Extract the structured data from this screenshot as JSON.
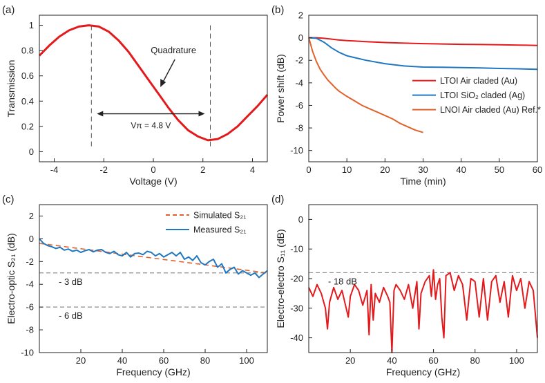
{
  "colors": {
    "red": "#e3191c",
    "blue": "#1f77c0",
    "orange": "#e0622a",
    "gray": "#8c8c8c",
    "axis": "#222222"
  },
  "chart_data": [
    {
      "panel_label": "(a)",
      "type": "line",
      "xlabel": "Voltage (V)",
      "ylabel": "Transmission",
      "xlim": [
        -4.6,
        4.6
      ],
      "ylim": [
        -0.08,
        1.08
      ],
      "xticks": [
        -4,
        -2,
        0,
        2,
        4
      ],
      "yticks": [
        0,
        0.2,
        0.4,
        0.6,
        0.8,
        1
      ],
      "series": [
        {
          "color": "#e3191c",
          "x": [
            -4.6,
            -4.2,
            -3.8,
            -3.4,
            -3.0,
            -2.6,
            -2.2,
            -1.8,
            -1.4,
            -1.0,
            -0.6,
            -0.2,
            0.2,
            0.6,
            1.0,
            1.4,
            1.8,
            2.2,
            2.6,
            3.0,
            3.4,
            3.8,
            4.2,
            4.6
          ],
          "y": [
            0.76,
            0.84,
            0.91,
            0.96,
            0.99,
            1.0,
            0.99,
            0.95,
            0.88,
            0.79,
            0.68,
            0.57,
            0.46,
            0.35,
            0.25,
            0.17,
            0.12,
            0.09,
            0.1,
            0.14,
            0.2,
            0.28,
            0.36,
            0.45
          ]
        }
      ],
      "annotations": {
        "quadrature": "Quadrature",
        "vpi": "Vπ = 4.8 V"
      },
      "markers": {
        "quadrature_x": 0.2,
        "dashed_x": [
          -2.5,
          2.3
        ],
        "vpi_span": [
          -2.5,
          2.3
        ],
        "vpi_y": 0.3
      }
    },
    {
      "panel_label": "(b)",
      "type": "line",
      "xlabel": "Time (min)",
      "ylabel": "Power shift (dB)",
      "xlim": [
        0,
        60
      ],
      "ylim": [
        -11,
        2
      ],
      "xticks": [
        0,
        10,
        20,
        30,
        40,
        50,
        60
      ],
      "yticks": [
        -10,
        -8,
        -6,
        -4,
        -2,
        0,
        2
      ],
      "legend_position": "right",
      "series": [
        {
          "name": "LTOI Air claded (Au)",
          "color": "#e3191c",
          "x": [
            0,
            2,
            4,
            6,
            8,
            10,
            15,
            20,
            25,
            30,
            35,
            40,
            45,
            50,
            55,
            60
          ],
          "y": [
            0,
            0,
            -0.05,
            -0.12,
            -0.2,
            -0.25,
            -0.35,
            -0.42,
            -0.48,
            -0.52,
            -0.55,
            -0.58,
            -0.6,
            -0.62,
            -0.65,
            -0.68
          ]
        },
        {
          "name": "LTOI SiO₂ claded (Ag)",
          "color": "#1f77c0",
          "x": [
            0,
            2,
            4,
            6,
            8,
            10,
            15,
            20,
            25,
            30,
            35,
            40,
            45,
            50,
            55,
            60
          ],
          "y": [
            0,
            -0.05,
            -0.4,
            -0.9,
            -1.3,
            -1.6,
            -2.0,
            -2.3,
            -2.5,
            -2.6,
            -2.62,
            -2.65,
            -2.68,
            -2.72,
            -2.75,
            -2.8
          ]
        },
        {
          "name": "LNOI Air claded (Au) Ref.*",
          "color": "#e0622a",
          "x": [
            0,
            0.5,
            1,
            2,
            3,
            4,
            5,
            6,
            7,
            8,
            10,
            12,
            14,
            16,
            18,
            20,
            22,
            24,
            26,
            28,
            30
          ],
          "y": [
            0,
            -0.6,
            -1.2,
            -2.1,
            -2.8,
            -3.3,
            -3.75,
            -4.1,
            -4.45,
            -4.75,
            -5.2,
            -5.6,
            -6.0,
            -6.3,
            -6.6,
            -6.9,
            -7.2,
            -7.6,
            -7.9,
            -8.2,
            -8.4
          ]
        }
      ]
    },
    {
      "panel_label": "(c)",
      "type": "line",
      "xlabel": "Frequency (GHz)",
      "ylabel": "Electro-optic S₂₁ (dB)",
      "xlim": [
        0,
        110
      ],
      "ylim": [
        -10,
        3
      ],
      "xticks": [
        20,
        40,
        60,
        80,
        100
      ],
      "yticks": [
        -10,
        -8,
        -6,
        -4,
        -2,
        0,
        2
      ],
      "legend_position": "top-right",
      "reference_lines": [
        {
          "y": -3,
          "label": "- 3 dB"
        },
        {
          "y": -6,
          "label": "- 6 dB"
        }
      ],
      "series": [
        {
          "name": "Simulated S₂₁",
          "color": "#e0622a",
          "style": "dashed",
          "x": [
            0,
            110
          ],
          "y": [
            -0.4,
            -3.0
          ]
        },
        {
          "name": "Measured S₂₁",
          "color": "#1f77c0",
          "x": [
            0,
            2,
            4,
            6,
            8,
            10,
            12,
            14,
            16,
            18,
            20,
            22,
            24,
            26,
            28,
            30,
            32,
            34,
            36,
            38,
            40,
            42,
            44,
            46,
            48,
            50,
            52,
            54,
            56,
            58,
            60,
            62,
            64,
            66,
            68,
            70,
            72,
            74,
            76,
            78,
            80,
            82,
            84,
            86,
            88,
            90,
            92,
            94,
            96,
            98,
            100,
            102,
            104,
            106,
            108,
            110
          ],
          "y": [
            0,
            -0.4,
            -0.6,
            -0.7,
            -0.85,
            -0.75,
            -1.0,
            -0.9,
            -1.1,
            -1.0,
            -1.2,
            -1.05,
            -0.95,
            -1.15,
            -1.0,
            -0.95,
            -1.2,
            -1.3,
            -1.1,
            -1.4,
            -1.5,
            -1.2,
            -1.6,
            -1.3,
            -1.25,
            -1.4,
            -1.1,
            -1.2,
            -1.5,
            -1.3,
            -1.6,
            -1.4,
            -1.2,
            -1.5,
            -1.2,
            -1.8,
            -1.6,
            -1.9,
            -1.5,
            -2.1,
            -2.3,
            -2.0,
            -1.8,
            -2.5,
            -2.2,
            -3.0,
            -2.7,
            -2.5,
            -3.1,
            -2.8,
            -3.0,
            -3.2,
            -3.0,
            -3.4,
            -3.1,
            -2.8
          ]
        }
      ]
    },
    {
      "panel_label": "(d)",
      "type": "line",
      "xlabel": "Frequency (GHz)",
      "ylabel": "Electro-electro S₁₁ (dB)",
      "xlim": [
        0,
        110
      ],
      "ylim": [
        -45,
        5
      ],
      "xticks": [
        20,
        40,
        60,
        80,
        100
      ],
      "yticks": [
        -40,
        -30,
        -20,
        -10,
        0
      ],
      "reference_lines": [
        {
          "y": -18,
          "label": "- 18 dB"
        }
      ],
      "series": [
        {
          "color": "#e3191c",
          "x": [
            0,
            2,
            4,
            6,
            8,
            9,
            10,
            12,
            14,
            16,
            18,
            19,
            20,
            22,
            24,
            26,
            28,
            29,
            30,
            31,
            32,
            34,
            36,
            38,
            39,
            40,
            41,
            42,
            44,
            46,
            48,
            50,
            52,
            53,
            54,
            56,
            58,
            59,
            60,
            61,
            62,
            63,
            64,
            65,
            66,
            68,
            70,
            72,
            74,
            76,
            78,
            80,
            82,
            84,
            86,
            88,
            90,
            92,
            94,
            96,
            98,
            100,
            102,
            104,
            106,
            108,
            110
          ],
          "y": [
            -23,
            -26,
            -22,
            -25,
            -30,
            -37,
            -28,
            -23,
            -27,
            -24,
            -30,
            -33,
            -26,
            -22,
            -24,
            -29,
            -24,
            -39,
            -22,
            -34,
            -25,
            -28,
            -23,
            -26,
            -28,
            -45,
            -24,
            -22,
            -24,
            -27,
            -22,
            -30,
            -21,
            -37,
            -25,
            -21,
            -19,
            -26,
            -17,
            -27,
            -22,
            -20,
            -33,
            -40,
            -19,
            -18,
            -24,
            -19,
            -22,
            -34,
            -20,
            -21,
            -33,
            -20,
            -34,
            -21,
            -19,
            -28,
            -21,
            -33,
            -19,
            -24,
            -20,
            -30,
            -21,
            -24,
            -40
          ]
        }
      ]
    }
  ]
}
